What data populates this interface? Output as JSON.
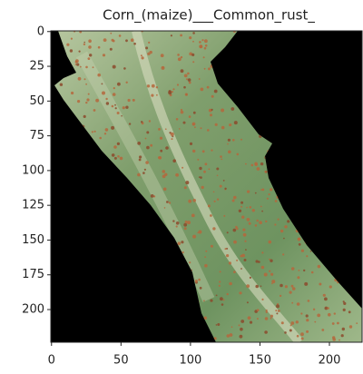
{
  "chart_data": {
    "type": "image",
    "title": "Corn_(maize)___Common_rust_",
    "xlim": [
      -0.5,
      223.5
    ],
    "ylim": [
      223.5,
      -0.5
    ],
    "xticks": [
      0,
      50,
      100,
      150,
      200
    ],
    "yticks": [
      0,
      25,
      50,
      75,
      100,
      125,
      150,
      175,
      200
    ]
  }
}
